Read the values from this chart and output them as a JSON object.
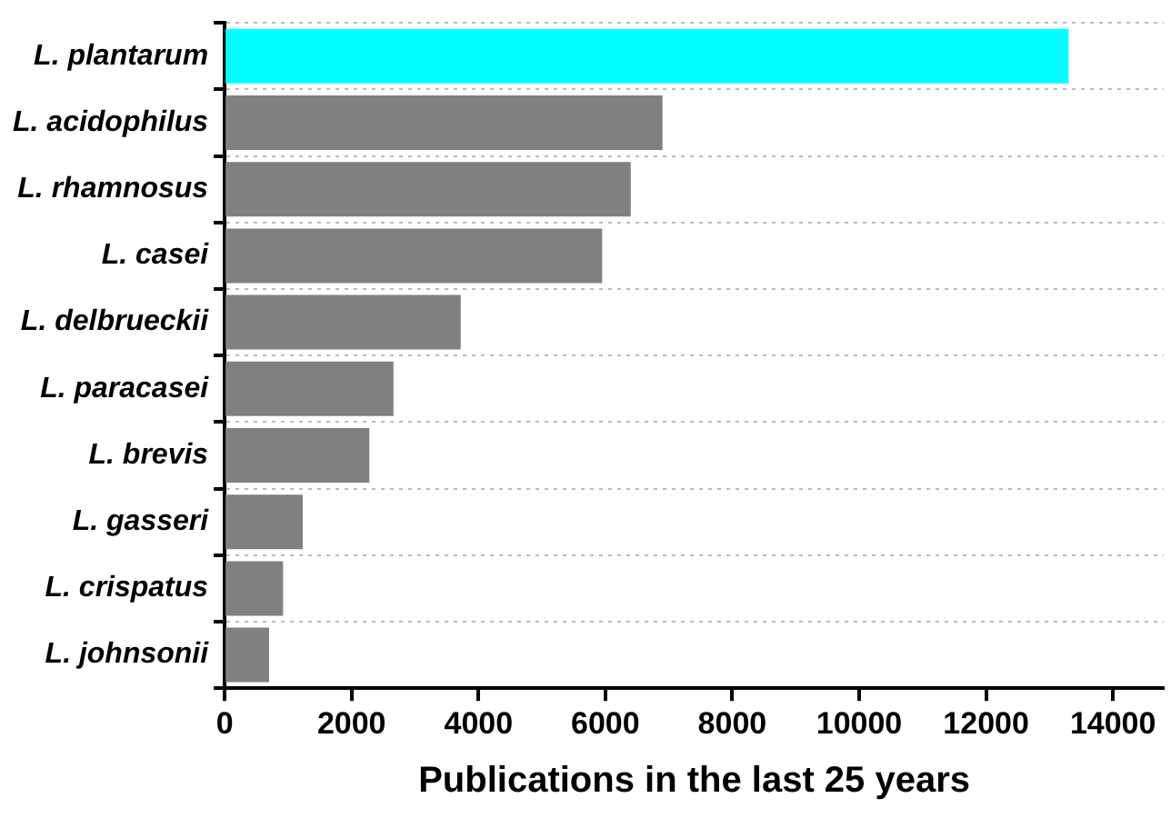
{
  "chart_data": {
    "type": "bar",
    "orientation": "horizontal",
    "xlabel": "Publications in the last 25 years",
    "categories": [
      "L. plantarum",
      "L. acidophilus",
      "L. rhamnosus",
      "L. casei",
      "L. delbrueckii",
      "L. paracasei",
      "L. brevis",
      "L. gasseri",
      "L. crispatus",
      "L. johnsonii"
    ],
    "values": [
      13300,
      6900,
      6400,
      5950,
      3720,
      2660,
      2280,
      1230,
      920,
      700
    ],
    "colors": [
      "#00ffff",
      "#808080",
      "#808080",
      "#808080",
      "#808080",
      "#808080",
      "#808080",
      "#808080",
      "#808080",
      "#808080"
    ],
    "xlim": [
      0,
      14800
    ],
    "xticks": [
      0,
      2000,
      4000,
      6000,
      8000,
      10000,
      12000,
      14000
    ],
    "grid": "y",
    "legend": false
  }
}
